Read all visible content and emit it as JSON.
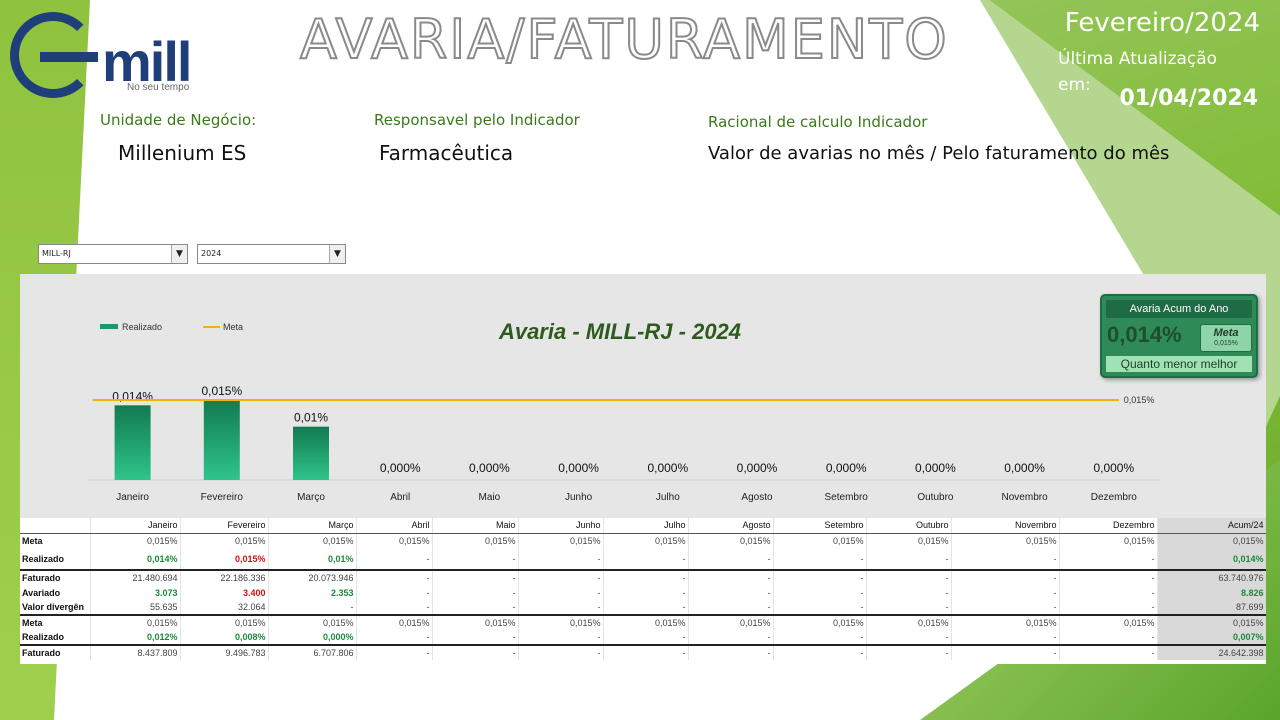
{
  "logo": {
    "word": "mill",
    "tagline": "No seu tempo"
  },
  "header": {
    "title": "AVARIA/FATURAMENTO",
    "period": "Fevereiro/2024",
    "update_label": "Última Atualização em:",
    "update_date": "01/04/2024"
  },
  "info": {
    "unit_label": "Unidade de Negócio:",
    "unit_value": "Millenium ES",
    "resp_label": "Responsavel pelo Indicador",
    "resp_value": "Farmacêutica",
    "rational_label": "Racional de calculo Indicador",
    "rational_value": "Valor de avarias no mês / Pelo faturamento  do mês"
  },
  "filters": {
    "branch": "MILL-RJ",
    "year": "2024"
  },
  "kpi": {
    "title": "Avaria Acum do Ano",
    "value": "0,014%",
    "meta_label": "Meta",
    "meta_value": "0,015%",
    "note": "Quanto menor melhor"
  },
  "chart_data": {
    "type": "bar",
    "title": "Avaria - MILL-RJ - 2024",
    "categories": [
      "Janeiro",
      "Fevereiro",
      "Março",
      "Abril",
      "Maio",
      "Junho",
      "Julho",
      "Agosto",
      "Setembro",
      "Outubro",
      "Novembro",
      "Dezembro"
    ],
    "series": [
      {
        "name": "Realizado",
        "type": "bar",
        "color": "#1a9a6a",
        "values": [
          0.014,
          0.015,
          0.01,
          0,
          0,
          0,
          0,
          0,
          0,
          0,
          0,
          0
        ]
      },
      {
        "name": "Meta",
        "type": "line",
        "color": "#f0b400",
        "values": [
          0.015,
          0.015,
          0.015,
          0.015,
          0.015,
          0.015,
          0.015,
          0.015,
          0.015,
          0.015,
          0.015,
          0.015
        ]
      }
    ],
    "data_labels": [
      "0,014%",
      "0,015%",
      "0,01%",
      "0,000%",
      "0,000%",
      "0,000%",
      "0,000%",
      "0,000%",
      "0,000%",
      "0,000%",
      "0,000%",
      "0,000%"
    ],
    "meta_label": "0,015%",
    "legend_position": "top-left",
    "ylim": [
      0,
      0.018
    ]
  },
  "table": {
    "headers": [
      "",
      "Janeiro",
      "Fevereiro",
      "Março",
      "Abril",
      "Maio",
      "Junho",
      "Julho",
      "Agosto",
      "Setembro",
      "Outubro",
      "Novembro",
      "Dezembro",
      "Acum/24"
    ],
    "rows": [
      {
        "label": "Meta",
        "style": "",
        "cells": [
          "0,015%",
          "0,015%",
          "0,015%",
          "0,015%",
          "0,015%",
          "0,015%",
          "0,015%",
          "0,015%",
          "0,015%",
          "0,015%",
          "0,015%",
          "0,015%",
          "0,015%"
        ]
      },
      {
        "label": "Realizado",
        "style": "tall",
        "cells": [
          "0,014%",
          "0,015%",
          "0,01%",
          "-",
          "-",
          "-",
          "-",
          "-",
          "-",
          "-",
          "-",
          "-",
          "0,014%"
        ],
        "colors": [
          "green",
          "red",
          "green",
          "",
          "",
          "",
          "",
          "",
          "",
          "",
          "",
          "",
          "green"
        ]
      },
      {
        "label": "Faturado",
        "style": "thick",
        "cells": [
          "21.480.694",
          "22.186.336",
          "20.073.946",
          "-",
          "-",
          "-",
          "-",
          "-",
          "-",
          "-",
          "-",
          "-",
          "63.740.976"
        ]
      },
      {
        "label": "Avariado",
        "style": "",
        "cells": [
          "3.073",
          "3.400",
          "2.353",
          "-",
          "-",
          "-",
          "-",
          "-",
          "-",
          "-",
          "-",
          "-",
          "8.826"
        ],
        "colors": [
          "green",
          "red",
          "green",
          "",
          "",
          "",
          "",
          "",
          "",
          "",
          "",
          "",
          "green"
        ]
      },
      {
        "label": "Valor divergên",
        "style": "",
        "cells": [
          "55.635",
          "32.064",
          "-",
          "-",
          "-",
          "-",
          "-",
          "-",
          "-",
          "-",
          "-",
          "-",
          "87.699"
        ]
      },
      {
        "label": "Meta",
        "style": "thick",
        "cells": [
          "0,015%",
          "0,015%",
          "0,015%",
          "0,015%",
          "0,015%",
          "0,015%",
          "0,015%",
          "0,015%",
          "0,015%",
          "0,015%",
          "0,015%",
          "0,015%",
          "0,015%"
        ]
      },
      {
        "label": "Realizado",
        "style": "",
        "cells": [
          "0,012%",
          "0,008%",
          "0,000%",
          "-",
          "-",
          "-",
          "-",
          "-",
          "-",
          "-",
          "-",
          "-",
          "0,007%"
        ],
        "colors": [
          "green",
          "green",
          "green",
          "",
          "",
          "",
          "",
          "",
          "",
          "",
          "",
          "",
          "green"
        ]
      },
      {
        "label": "Faturado",
        "style": "thick",
        "cells": [
          "8.437.809",
          "9.496.783",
          "6.707.806",
          "-",
          "-",
          "-",
          "-",
          "-",
          "-",
          "-",
          "-",
          "-",
          "24.642.398"
        ]
      }
    ]
  },
  "colors": {
    "accent_green": "#2e8b57",
    "meta_line": "#f0b400",
    "bar": "#1a9a6a"
  }
}
